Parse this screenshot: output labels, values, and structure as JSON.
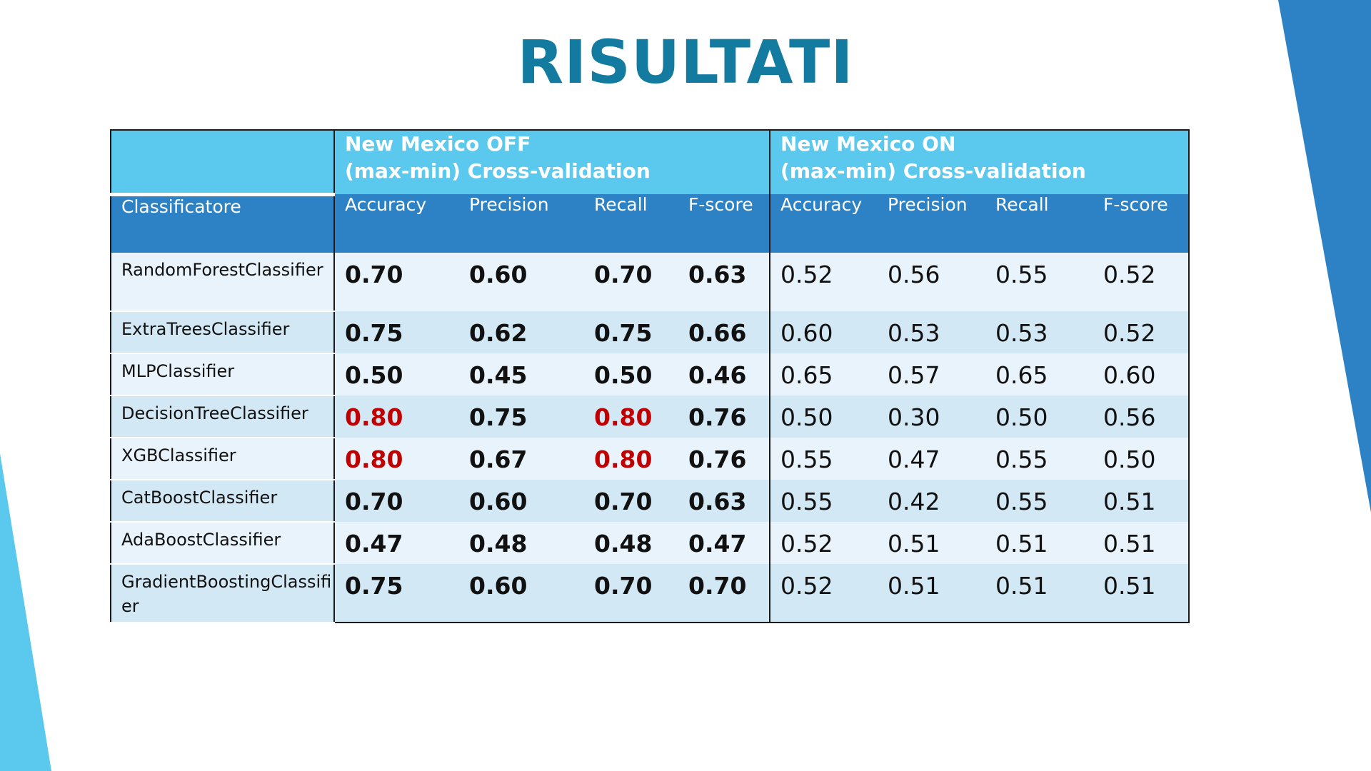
{
  "title": "RISULTATI",
  "colors": {
    "title": "#137BA0",
    "group_header_bg": "#5BC8EE",
    "column_header_bg": "#2C82C5",
    "row_light": "#E8F3FB",
    "row_dark": "#D3E8F5",
    "highlight": "#C00000",
    "accent_left": "#5BC8EE",
    "accent_right": "#2C82C5"
  },
  "table": {
    "groups": [
      {
        "line1": "New Mexico OFF",
        "line2": "(max-min) Cross-validation"
      },
      {
        "line1": "New Mexico ON",
        "line2": "(max-min) Cross-validation"
      }
    ],
    "columns": [
      "Classificatore",
      "Accuracy",
      "Precision",
      "Recall",
      "F-score",
      "Accuracy",
      "Precision",
      "Recall",
      "F-score"
    ],
    "rows": [
      {
        "name": "RandomForestClassifier",
        "off": [
          "0.70",
          "0.60",
          "0.70",
          "0.63"
        ],
        "on": [
          "0.52",
          "0.56",
          "0.55",
          "0.52"
        ]
      },
      {
        "name": "ExtraTreesClassifier",
        "off": [
          "0.75",
          "0.62",
          "0.75",
          "0.66"
        ],
        "on": [
          "0.60",
          "0.53",
          "0.53",
          "0.52"
        ]
      },
      {
        "name": "MLPClassifier",
        "off": [
          "0.50",
          "0.45",
          "0.50",
          "0.46"
        ],
        "on": [
          "0.65",
          "0.57",
          "0.65",
          "0.60"
        ]
      },
      {
        "name": "DecisionTreeClassifier",
        "off": [
          "0.80",
          "0.75",
          "0.80",
          "0.76"
        ],
        "on": [
          "0.50",
          "0.30",
          "0.50",
          "0.56"
        ]
      },
      {
        "name": "XGBClassifier",
        "off": [
          "0.80",
          "0.67",
          "0.80",
          "0.76"
        ],
        "on": [
          "0.55",
          "0.47",
          "0.55",
          "0.50"
        ]
      },
      {
        "name": "CatBoostClassifier",
        "off": [
          "0.70",
          "0.60",
          "0.70",
          "0.63"
        ],
        "on": [
          "0.55",
          "0.42",
          "0.55",
          "0.51"
        ]
      },
      {
        "name": "AdaBoostClassifier",
        "off": [
          "0.47",
          "0.48",
          "0.48",
          "0.47"
        ],
        "on": [
          "0.52",
          "0.51",
          "0.51",
          "0.51"
        ]
      },
      {
        "name": "GradientBoostingClassifier",
        "off": [
          "0.75",
          "0.60",
          "0.70",
          "0.70"
        ],
        "on": [
          "0.52",
          "0.51",
          "0.51",
          "0.51"
        ]
      }
    ]
  }
}
